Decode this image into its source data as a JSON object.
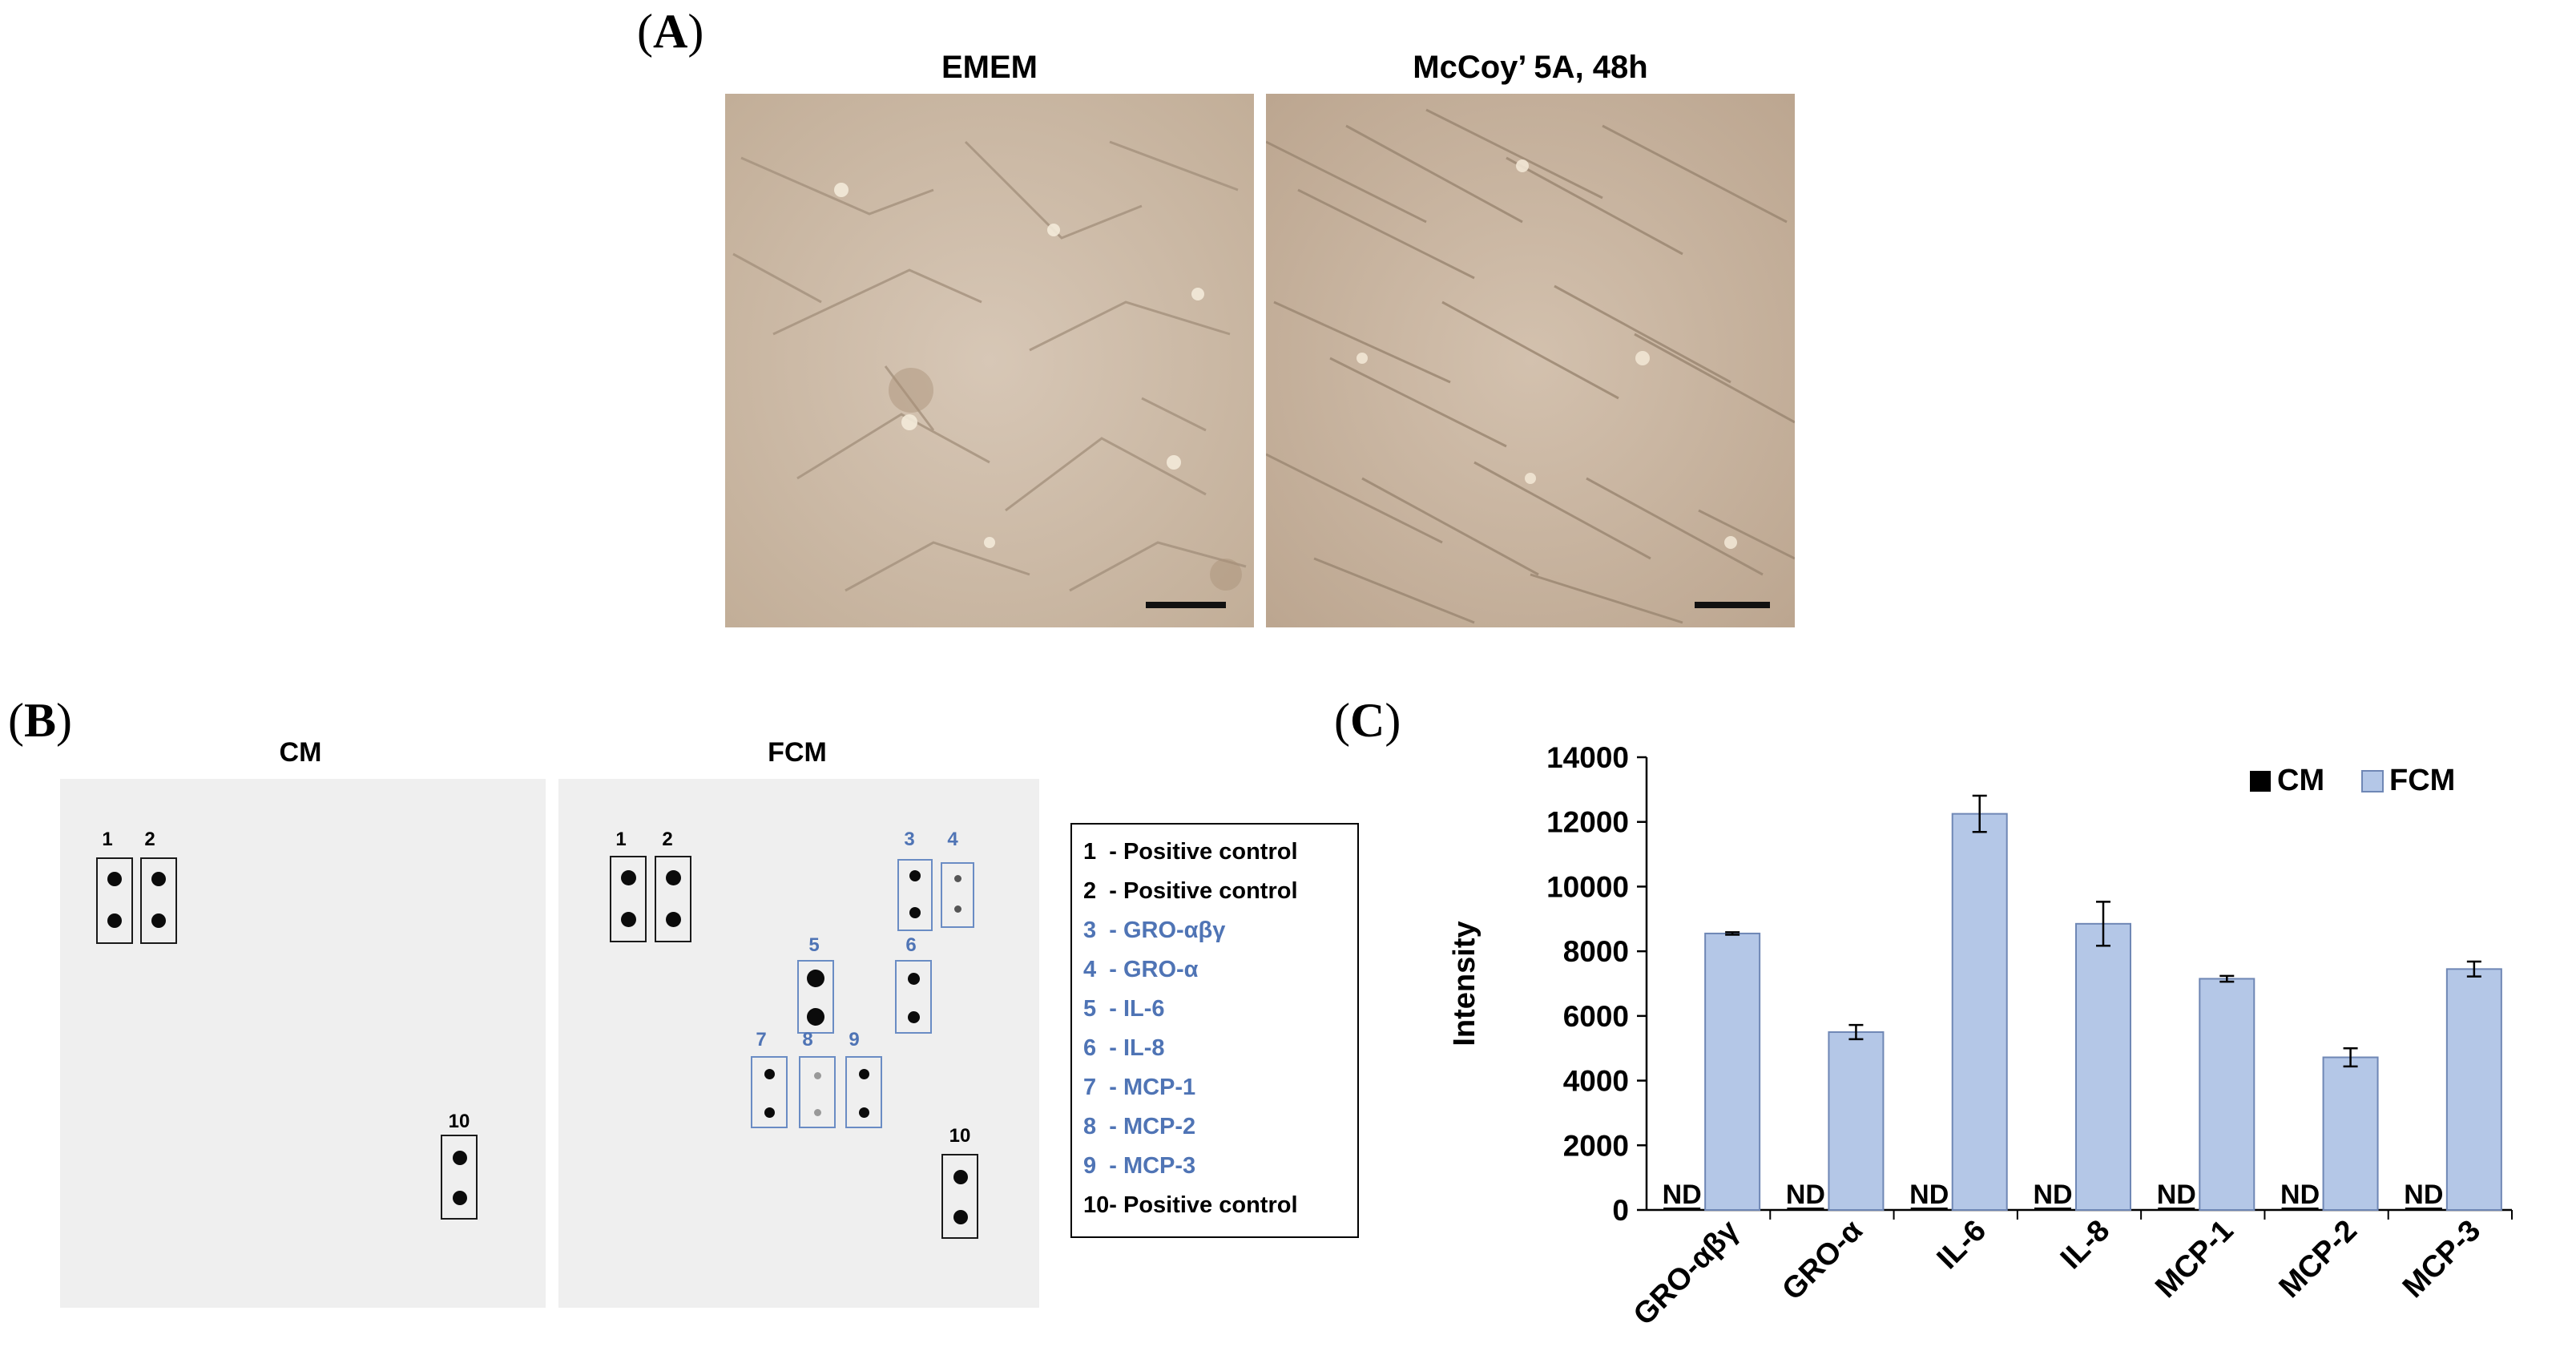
{
  "panel_a": {
    "letter": "A",
    "images": [
      {
        "title": "EMEM"
      },
      {
        "title": "McCoy’ 5A, 48h"
      }
    ]
  },
  "panel_b": {
    "letter": "B",
    "membranes": [
      {
        "title": "CM",
        "spot_labels": [
          "1",
          "2",
          "10"
        ]
      },
      {
        "title": "FCM",
        "spot_labels": [
          "1",
          "2",
          "3",
          "4",
          "5",
          "6",
          "7",
          "8",
          "9",
          "10"
        ]
      }
    ],
    "legend": [
      {
        "text": "1  - Positive control",
        "color": "#000000"
      },
      {
        "text": "2  - Positive control",
        "color": "#000000"
      },
      {
        "text": "3  - GRO-αβγ",
        "color": "#4f74b5"
      },
      {
        "text": "4  - GRO-α",
        "color": "#4f74b5"
      },
      {
        "text": "5  - IL-6",
        "color": "#4f74b5"
      },
      {
        "text": "6  - IL-8",
        "color": "#4f74b5"
      },
      {
        "text": "7  - MCP-1",
        "color": "#4f74b5"
      },
      {
        "text": "8  - MCP-2",
        "color": "#4f74b5"
      },
      {
        "text": "9  - MCP-3",
        "color": "#4f74b5"
      },
      {
        "text": "10- Positive control",
        "color": "#000000"
      }
    ]
  },
  "panel_c": {
    "letter": "C"
  },
  "chart_data": {
    "type": "bar",
    "categories": [
      "GRO-αβγ",
      "GRO-α",
      "IL-6",
      "IL-8",
      "MCP-1",
      "MCP-2",
      "MCP-3"
    ],
    "series": [
      {
        "name": "CM",
        "color": "#000000",
        "values": [
          0,
          0,
          0,
          0,
          0,
          0,
          0
        ],
        "labels": [
          "ND",
          "ND",
          "ND",
          "ND",
          "ND",
          "ND",
          "ND"
        ]
      },
      {
        "name": "FCM",
        "color": "#b4c7e7",
        "values": [
          8550,
          5500,
          12250,
          8850,
          7150,
          4720,
          7450
        ],
        "errors": [
          40,
          220,
          560,
          680,
          90,
          280,
          230
        ]
      }
    ],
    "xlabel": "",
    "ylabel": "Intensity",
    "ylim": [
      0,
      14000
    ],
    "yticks": [
      0,
      2000,
      4000,
      6000,
      8000,
      10000,
      12000,
      14000
    ],
    "grid": false,
    "legend_position": "top-right"
  }
}
